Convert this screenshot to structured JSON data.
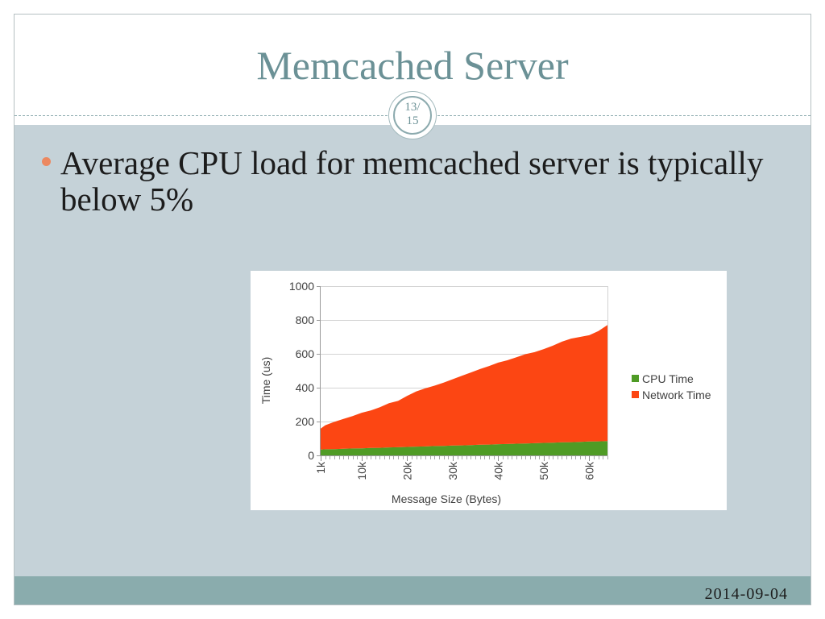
{
  "slide": {
    "title": "Memcached Server",
    "counter": [
      "13/",
      "15"
    ],
    "bullets": [
      "Average CPU load for memcached server is typically below 5%"
    ],
    "footer_date": "2014-09-04"
  },
  "theme": {
    "title_color": "#6b9196",
    "content_background": "#c5d2d8",
    "footer_background": "#8aacad",
    "bullet_color": "#ec8860"
  },
  "chart_data": {
    "type": "area",
    "stacked": true,
    "xlabel": "Message Size (Bytes)",
    "ylabel": "Time (us)",
    "xlim": [
      1000,
      64000
    ],
    "ylim": [
      0,
      1000
    ],
    "xticks": [
      1000,
      10000,
      20000,
      30000,
      40000,
      50000,
      60000
    ],
    "xtick_labels": [
      "1k",
      "10k",
      "20k",
      "30k",
      "40k",
      "50k",
      "60k"
    ],
    "yticks": [
      0,
      200,
      400,
      600,
      800,
      1000
    ],
    "ytick_labels": [
      "0",
      "200",
      "400",
      "600",
      "800",
      "1000"
    ],
    "grid": "horizontal",
    "legend": "right",
    "x": [
      1000,
      2000,
      4000,
      6000,
      8000,
      10000,
      12000,
      14000,
      16000,
      18000,
      20000,
      22000,
      24000,
      26000,
      28000,
      30000,
      32000,
      34000,
      36000,
      38000,
      40000,
      42000,
      44000,
      46000,
      48000,
      50000,
      52000,
      54000,
      56000,
      58000,
      60000,
      62000,
      64000
    ],
    "series": [
      {
        "name": "CPU Time",
        "color": "#4f9b25",
        "values": [
          35,
          36,
          37,
          39,
          41,
          42,
          44,
          45,
          47,
          48,
          50,
          52,
          53,
          55,
          56,
          58,
          59,
          61,
          63,
          64,
          66,
          67,
          69,
          70,
          72,
          74,
          75,
          77,
          78,
          80,
          82,
          83,
          85
        ]
      },
      {
        "name": "Network Time",
        "color": "#fc4613",
        "values": [
          123,
          142,
          161,
          176,
          191,
          210,
          221,
          240,
          261,
          274,
          302,
          326,
          343,
          357,
          374,
          392,
          411,
          429,
          447,
          464,
          482,
          495,
          511,
          528,
          538,
          554,
          573,
          595,
          612,
          620,
          628,
          652,
          685
        ]
      }
    ]
  }
}
